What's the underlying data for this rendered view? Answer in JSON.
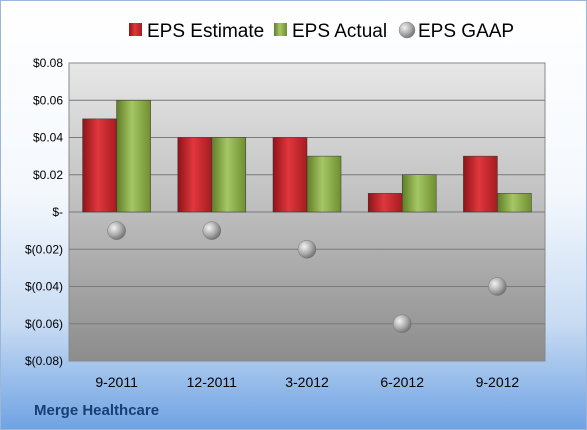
{
  "company": "Merge Healthcare",
  "chart_data": {
    "type": "bar",
    "categories": [
      "9-2011",
      "12-2011",
      "3-2012",
      "6-2012",
      "9-2012"
    ],
    "series": [
      {
        "name": "EPS Estimate",
        "kind": "bar",
        "color": "#c0272d",
        "values": [
          0.05,
          0.04,
          0.04,
          0.01,
          0.03
        ]
      },
      {
        "name": "EPS Actual",
        "kind": "bar",
        "color": "#8db04a",
        "values": [
          0.06,
          0.04,
          0.03,
          0.02,
          0.01
        ]
      },
      {
        "name": "EPS GAAP",
        "kind": "marker",
        "color": "#a0a0a0",
        "values": [
          -0.01,
          -0.01,
          -0.02,
          -0.06,
          -0.04
        ]
      }
    ],
    "ylim": [
      -0.08,
      0.08
    ],
    "yticks": [
      0.08,
      0.06,
      0.04,
      0.02,
      0,
      -0.02,
      -0.04,
      -0.06,
      -0.08
    ],
    "ytick_labels": [
      "$0.08",
      "$0.06",
      "$0.04",
      "$0.02",
      "$-",
      "$(0.02)",
      "$(0.04)",
      "$(0.06)",
      "$(0.08)"
    ],
    "grid": true,
    "legend": "top"
  }
}
